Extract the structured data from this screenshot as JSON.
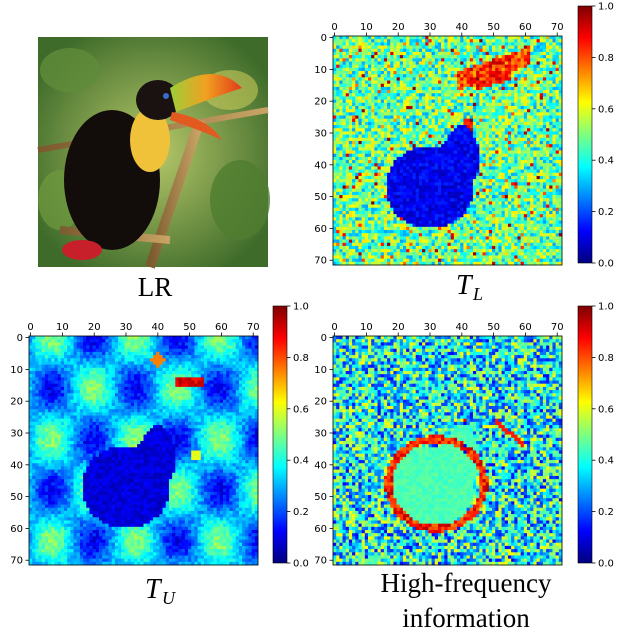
{
  "colors": {
    "jet": [
      "#00007f",
      "#0000ff",
      "#007fff",
      "#00ffff",
      "#7fff7f",
      "#ffff00",
      "#ff7f00",
      "#ff0000",
      "#7f0000"
    ],
    "caption_text": "#000000"
  },
  "chart_data": [
    {
      "type": "image",
      "panel": "photo",
      "caption": "LR",
      "image_icon": "toucan-photo"
    },
    {
      "type": "heatmap",
      "panel": "T_L",
      "caption_main": "T",
      "caption_sub": "L",
      "x_ticks": [
        0,
        10,
        20,
        30,
        40,
        50,
        60,
        70
      ],
      "y_ticks": [
        0,
        10,
        20,
        30,
        40,
        50,
        60,
        70
      ],
      "xlim": [
        0,
        72
      ],
      "ylim": [
        0,
        72
      ],
      "colorbar_ticks": [
        "0.0",
        "0.2",
        "0.4",
        "0.6",
        "0.8",
        "1.0"
      ],
      "colormap": "jet",
      "vmin": 0.0,
      "vmax": 1.0
    },
    {
      "type": "heatmap",
      "panel": "T_U",
      "caption_main": "T",
      "caption_sub": "U",
      "x_ticks": [
        0,
        10,
        20,
        30,
        40,
        50,
        60,
        70
      ],
      "y_ticks": [
        0,
        10,
        20,
        30,
        40,
        50,
        60,
        70
      ],
      "xlim": [
        0,
        72
      ],
      "ylim": [
        0,
        72
      ],
      "colorbar_ticks": [
        "0.0",
        "0.2",
        "0.4",
        "0.6",
        "0.8",
        "1.0"
      ],
      "colormap": "jet",
      "vmin": 0.0,
      "vmax": 1.0
    },
    {
      "type": "heatmap",
      "panel": "high_frequency",
      "caption_line1": "High-frequency",
      "caption_line2": "information",
      "x_ticks": [
        0,
        10,
        20,
        30,
        40,
        50,
        60,
        70
      ],
      "y_ticks": [
        0,
        10,
        20,
        30,
        40,
        50,
        60,
        70
      ],
      "xlim": [
        0,
        72
      ],
      "ylim": [
        0,
        72
      ],
      "colorbar_ticks": [
        "0.0",
        "0.2",
        "0.4",
        "0.6",
        "0.8",
        "1.0"
      ],
      "colormap": "jet",
      "vmin": 0.0,
      "vmax": 1.0
    }
  ]
}
